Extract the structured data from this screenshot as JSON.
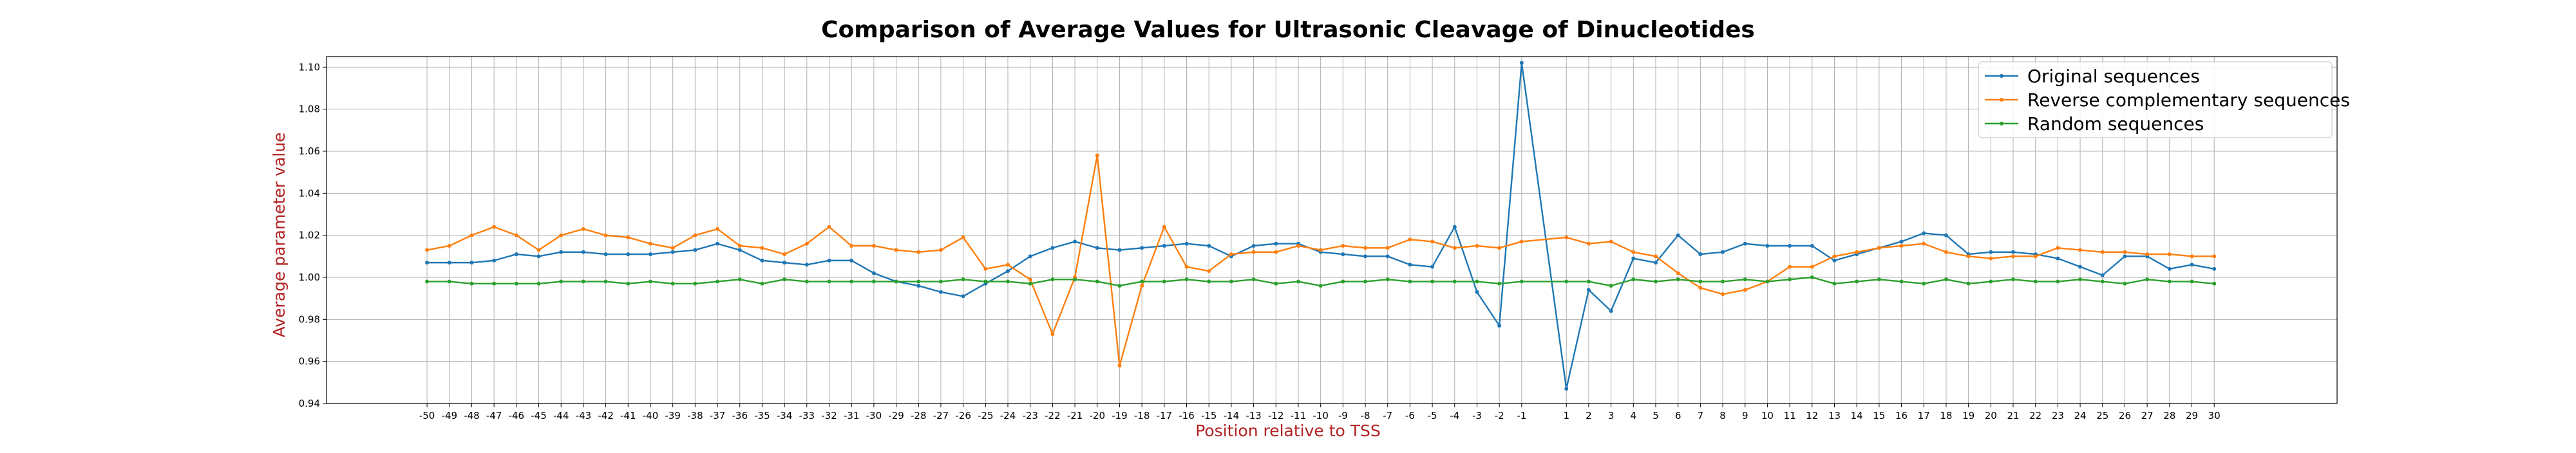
{
  "chart_data": {
    "type": "line",
    "title": "Comparison of Average Values for Ultrasonic Cleavage of Dinucleotides",
    "xlabel": "Position relative to TSS",
    "ylabel": "Average parameter value",
    "x": [
      -50,
      -49,
      -48,
      -47,
      -46,
      -45,
      -44,
      -43,
      -42,
      -41,
      -40,
      -39,
      -38,
      -37,
      -36,
      -35,
      -34,
      -33,
      -32,
      -31,
      -30,
      -29,
      -28,
      -27,
      -26,
      -25,
      -24,
      -23,
      -22,
      -21,
      -20,
      -19,
      -18,
      -17,
      -16,
      -15,
      -14,
      -13,
      -12,
      -11,
      -10,
      -9,
      -8,
      -7,
      -6,
      -5,
      -4,
      -3,
      -2,
      -1,
      1,
      2,
      3,
      4,
      5,
      6,
      7,
      8,
      9,
      10,
      11,
      12,
      13,
      14,
      15,
      16,
      17,
      18,
      19,
      20,
      21,
      22,
      23,
      24,
      25,
      26,
      27,
      28,
      29,
      30
    ],
    "x_tick_labels": [
      "-50",
      "-49",
      "-48",
      "-47",
      "-46",
      "-45",
      "-44",
      "-43",
      "-42",
      "-41",
      "-40",
      "-39",
      "-38",
      "-37",
      "-36",
      "-35",
      "-34",
      "-33",
      "-32",
      "-31",
      "-30",
      "-29",
      "-28",
      "-27",
      "-26",
      "-25",
      "-24",
      "-23",
      "-22",
      "-21",
      "-20",
      "-19",
      "-18",
      "-17",
      "-16",
      "-15",
      "-14",
      "-13",
      "-12",
      "-11",
      "-10",
      "-9",
      "-8",
      "-7",
      "-6",
      "-5",
      "-4",
      "-3",
      "-2",
      "-1",
      "1",
      "2",
      "3",
      "4",
      "5",
      "6",
      "7",
      "8",
      "9",
      "10",
      "11",
      "12",
      "13",
      "14",
      "15",
      "16",
      "17",
      "18",
      "19",
      "20",
      "21",
      "22",
      "23",
      "24",
      "25",
      "26",
      "27",
      "28",
      "29",
      "30"
    ],
    "y_ticks": [
      0.94,
      0.96,
      0.98,
      1.0,
      1.02,
      1.04,
      1.06,
      1.08,
      1.1
    ],
    "y_tick_labels": [
      "0.94",
      "0.96",
      "0.98",
      "1.00",
      "1.02",
      "1.04",
      "1.06",
      "1.08",
      "1.10"
    ],
    "xlim": [
      -54.5,
      35.5
    ],
    "ylim": [
      0.94,
      1.105
    ],
    "grid": true,
    "legend_position": "top-right",
    "series": [
      {
        "name": "Original sequences",
        "color": "#1f77b4",
        "values": [
          1.007,
          1.007,
          1.007,
          1.008,
          1.011,
          1.01,
          1.012,
          1.012,
          1.011,
          1.011,
          1.011,
          1.012,
          1.013,
          1.016,
          1.013,
          1.008,
          1.007,
          1.006,
          1.008,
          1.008,
          1.002,
          0.998,
          0.996,
          0.993,
          0.991,
          0.997,
          1.003,
          1.01,
          1.014,
          1.017,
          1.014,
          1.013,
          1.014,
          1.015,
          1.016,
          1.015,
          1.01,
          1.015,
          1.016,
          1.016,
          1.012,
          1.011,
          1.01,
          1.01,
          1.006,
          1.005,
          1.024,
          0.993,
          0.977,
          1.102,
          0.947,
          0.994,
          0.984,
          1.009,
          1.007,
          1.02,
          1.011,
          1.012,
          1.016,
          1.015,
          1.015,
          1.015,
          1.008,
          1.011,
          1.014,
          1.017,
          1.021,
          1.02,
          1.011,
          1.012,
          1.012,
          1.011,
          1.009,
          1.005,
          1.001,
          1.01,
          1.01,
          1.004,
          1.006,
          1.004
        ]
      },
      {
        "name": "Reverse complementary sequences",
        "color": "#ff7f0e",
        "values": [
          1.013,
          1.015,
          1.02,
          1.024,
          1.02,
          1.013,
          1.02,
          1.023,
          1.02,
          1.019,
          1.016,
          1.014,
          1.02,
          1.023,
          1.015,
          1.014,
          1.011,
          1.016,
          1.024,
          1.015,
          1.015,
          1.013,
          1.012,
          1.013,
          1.019,
          1.004,
          1.006,
          0.999,
          0.973,
          1.0,
          1.058,
          0.958,
          0.996,
          1.024,
          1.005,
          1.003,
          1.011,
          1.012,
          1.012,
          1.015,
          1.013,
          1.015,
          1.014,
          1.014,
          1.018,
          1.017,
          1.014,
          1.015,
          1.014,
          1.017,
          1.019,
          1.016,
          1.017,
          1.012,
          1.01,
          1.002,
          0.995,
          0.992,
          0.994,
          0.998,
          1.005,
          1.005,
          1.01,
          1.012,
          1.014,
          1.015,
          1.016,
          1.012,
          1.01,
          1.009,
          1.01,
          1.01,
          1.014,
          1.013,
          1.012,
          1.012,
          1.011,
          1.011,
          1.01,
          1.01
        ]
      },
      {
        "name": "Random sequences",
        "color": "#2ca02c",
        "values": [
          0.998,
          0.998,
          0.997,
          0.997,
          0.997,
          0.997,
          0.998,
          0.998,
          0.998,
          0.997,
          0.998,
          0.997,
          0.997,
          0.998,
          0.999,
          0.997,
          0.999,
          0.998,
          0.998,
          0.998,
          0.998,
          0.998,
          0.998,
          0.998,
          0.999,
          0.998,
          0.998,
          0.997,
          0.999,
          0.999,
          0.998,
          0.996,
          0.998,
          0.998,
          0.999,
          0.998,
          0.998,
          0.999,
          0.997,
          0.998,
          0.996,
          0.998,
          0.998,
          0.999,
          0.998,
          0.998,
          0.998,
          0.998,
          0.997,
          0.998,
          0.998,
          0.998,
          0.996,
          0.999,
          0.998,
          0.999,
          0.998,
          0.998,
          0.999,
          0.998,
          0.999,
          1.0,
          0.997,
          0.998,
          0.999,
          0.998,
          0.997,
          0.999,
          0.997,
          0.998,
          0.999,
          0.998,
          0.998,
          0.999,
          0.998,
          0.997,
          0.999,
          0.998,
          0.998,
          0.997
        ]
      }
    ]
  }
}
